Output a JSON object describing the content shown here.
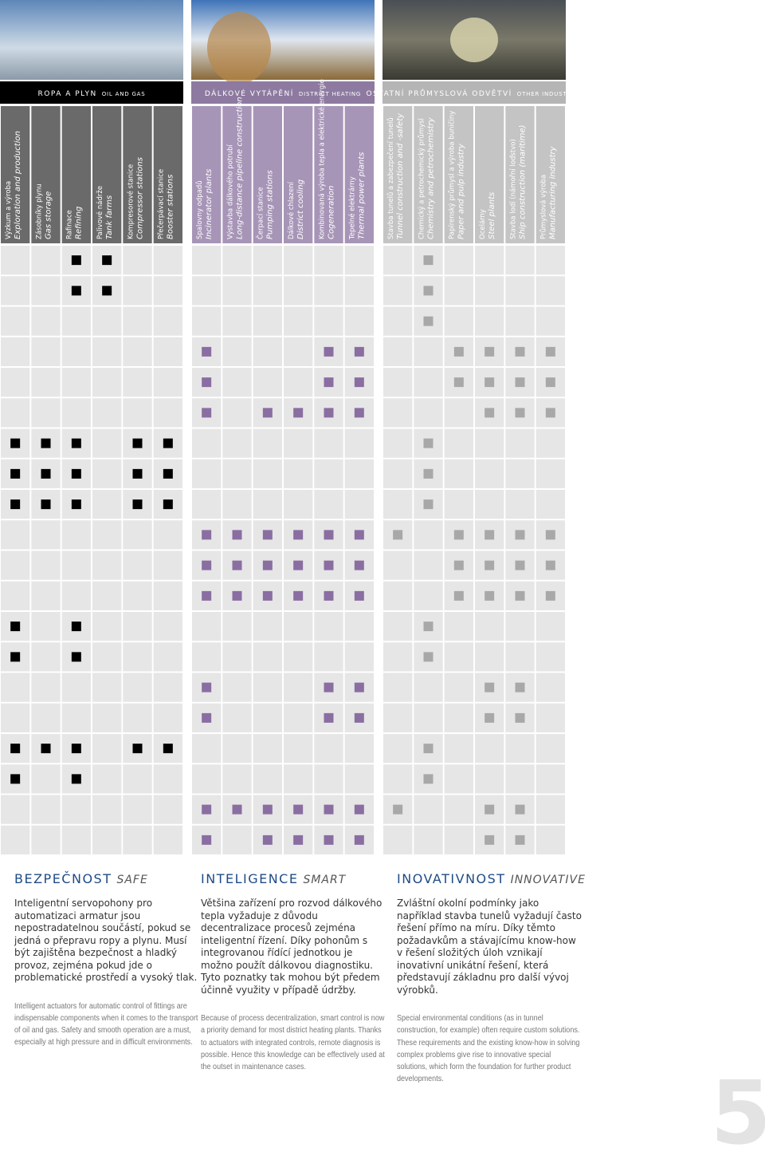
{
  "groups": [
    {
      "title": "ROPA A PLYN",
      "title_en": "OIL AND GAS",
      "columns": [
        {
          "cz": "Výzkum a výroba",
          "en": "Exploration and production"
        },
        {
          "cz": "Zásobníky plynu",
          "en": "Gas storage"
        },
        {
          "cz": "Rafinace",
          "en": "Refining"
        },
        {
          "cz": "Palivové nádrže",
          "en": "Tank farms"
        },
        {
          "cz": "Kompresorové stanice",
          "en": "Compressor stations"
        },
        {
          "cz": "Přečerpávací stanice",
          "en": "Booster stations"
        }
      ]
    },
    {
      "title": "DÁLKOVÉ VYTÁPĚNÍ",
      "title_en": "DISTRICT HEATING",
      "columns": [
        {
          "cz": "Spalovny odpadů",
          "en": "Incinerator plants"
        },
        {
          "cz": "Výstavba dálkového potrubí",
          "en": "Long-distance pipeline construction"
        },
        {
          "cz": "Čerpací stanice",
          "en": "Pumping stations"
        },
        {
          "cz": "Dálkové chlazení",
          "en": "District cooling"
        },
        {
          "cz": "Kombinovaná výroba tepla a elektrické energie",
          "en": "Cogeneration"
        },
        {
          "cz": "Tepelné elektrárny",
          "en": "Thermal power plants"
        }
      ]
    },
    {
      "title": "OSTATNÍ PRŮMYSLOVÁ ODVĚTVÍ",
      "title_en": "OTHER INDUSTRIES",
      "columns": [
        {
          "cz": "Stavba tunelů a zabezpečení tunelů",
          "en": "Tunnel construction and -safety"
        },
        {
          "cz": "Chemický a petrochemický průmysl",
          "en": "Chemistry and petrochemistry"
        },
        {
          "cz": "Papírenský průmysl a výroba buničiny",
          "en": "Paper and pulp industry"
        },
        {
          "cz": "Ocelárny",
          "en": "Steel plants"
        },
        {
          "cz": "Stavba lodí (námořní loďstvo)",
          "en": "Ship construction (maritime)"
        },
        {
          "cz": "Průmyslová výroba",
          "en": "Manufacturing industry"
        }
      ]
    }
  ],
  "matrix": [
    [
      0,
      0,
      1,
      1,
      0,
      0,
      0,
      0,
      0,
      0,
      0,
      0,
      0,
      1,
      0,
      0,
      0,
      0
    ],
    [
      0,
      0,
      1,
      1,
      0,
      0,
      0,
      0,
      0,
      0,
      0,
      0,
      0,
      1,
      0,
      0,
      0,
      0
    ],
    [
      0,
      0,
      0,
      0,
      0,
      0,
      0,
      0,
      0,
      0,
      0,
      0,
      0,
      1,
      0,
      0,
      0,
      0
    ],
    [
      0,
      0,
      0,
      0,
      0,
      0,
      1,
      0,
      0,
      0,
      1,
      1,
      0,
      0,
      1,
      1,
      1,
      1
    ],
    [
      0,
      0,
      0,
      0,
      0,
      0,
      1,
      0,
      0,
      0,
      1,
      1,
      0,
      0,
      1,
      1,
      1,
      1
    ],
    [
      0,
      0,
      0,
      0,
      0,
      0,
      1,
      0,
      1,
      1,
      1,
      1,
      0,
      0,
      0,
      1,
      1,
      1
    ],
    [
      1,
      1,
      1,
      0,
      1,
      1,
      0,
      0,
      0,
      0,
      0,
      0,
      0,
      1,
      0,
      0,
      0,
      0
    ],
    [
      1,
      1,
      1,
      0,
      1,
      1,
      0,
      0,
      0,
      0,
      0,
      0,
      0,
      1,
      0,
      0,
      0,
      0
    ],
    [
      1,
      1,
      1,
      0,
      1,
      1,
      0,
      0,
      0,
      0,
      0,
      0,
      0,
      1,
      0,
      0,
      0,
      0
    ],
    [
      0,
      0,
      0,
      0,
      0,
      0,
      1,
      1,
      1,
      1,
      1,
      1,
      1,
      0,
      1,
      1,
      1,
      1
    ],
    [
      0,
      0,
      0,
      0,
      0,
      0,
      1,
      1,
      1,
      1,
      1,
      1,
      0,
      0,
      1,
      1,
      1,
      1
    ],
    [
      0,
      0,
      0,
      0,
      0,
      0,
      1,
      1,
      1,
      1,
      1,
      1,
      0,
      0,
      1,
      1,
      1,
      1
    ],
    [
      1,
      0,
      1,
      0,
      0,
      0,
      0,
      0,
      0,
      0,
      0,
      0,
      0,
      1,
      0,
      0,
      0,
      0
    ],
    [
      1,
      0,
      1,
      0,
      0,
      0,
      0,
      0,
      0,
      0,
      0,
      0,
      0,
      1,
      0,
      0,
      0,
      0
    ],
    [
      0,
      0,
      0,
      0,
      0,
      0,
      1,
      0,
      0,
      0,
      1,
      1,
      0,
      0,
      0,
      1,
      1,
      0
    ],
    [
      0,
      0,
      0,
      0,
      0,
      0,
      1,
      0,
      0,
      0,
      1,
      1,
      0,
      0,
      0,
      1,
      1,
      0
    ],
    [
      1,
      1,
      1,
      0,
      1,
      1,
      0,
      0,
      0,
      0,
      0,
      0,
      0,
      1,
      0,
      0,
      0,
      0
    ],
    [
      1,
      0,
      1,
      0,
      0,
      0,
      0,
      0,
      0,
      0,
      0,
      0,
      0,
      1,
      0,
      0,
      0,
      0
    ],
    [
      0,
      0,
      0,
      0,
      0,
      0,
      1,
      1,
      1,
      1,
      1,
      1,
      1,
      0,
      0,
      1,
      1,
      0
    ],
    [
      0,
      0,
      0,
      0,
      0,
      0,
      1,
      0,
      1,
      1,
      1,
      1,
      0,
      0,
      0,
      1,
      1,
      0
    ]
  ],
  "sections": [
    {
      "title": "BEZPEČNOST",
      "title_en": "SAFE",
      "cz": "Inteligentní servopohony pro automatizaci armatur jsou nepostradatelnou součástí, pokud se jedná o přepravu ropy a plynu. Musí být zajištěna bezpečnost a hladký provoz, zejména pokud jde o problematické prostředí a vysoký tlak.",
      "en": "Intelligent actuators for automatic control of fittings are indispensable components when it comes to the transport of oil and gas. Safety and smooth operation are a must, especially at high pressure and in difficult environments."
    },
    {
      "title": "INTELIGENCE",
      "title_en": "SMART",
      "cz": "Většina zařízení pro rozvod dálkového tepla vyžaduje z důvodu decentralizace procesů zejména inteligentní řízení. Díky pohonům s integrovanou řídící jednotkou je možno použít dálkovou diagnostiku. Tyto poznatky tak mohou být předem účinně využity v případě údržby.",
      "en": "Because of process decentralization, smart control is now a priority demand for most district heating plants. Thanks to actuators with integrated controls, remote diagnosis is possible. Hence this knowledge can be effectively used at the outset in maintenance cases."
    },
    {
      "title": "INOVATIVNOST",
      "title_en": "INNOVATIVE",
      "cz": "Zvláštní okolní podmínky jako například stavba tunelů vyžadují často řešení přímo na míru. Díky těmto požadavkům a stávajícímu know-how v řešení složitých úloh vznikají inovativní unikátní řešení, která představují základnu pro další vývoj výrobků.",
      "en": "Special environmental conditions (as in tunnel construction, for example) often require custom solutions. These requirements and the existing know-how in solving complex problems give rise to innovative special solutions, which form the foundation for further product developments."
    }
  ],
  "page_number": "5"
}
